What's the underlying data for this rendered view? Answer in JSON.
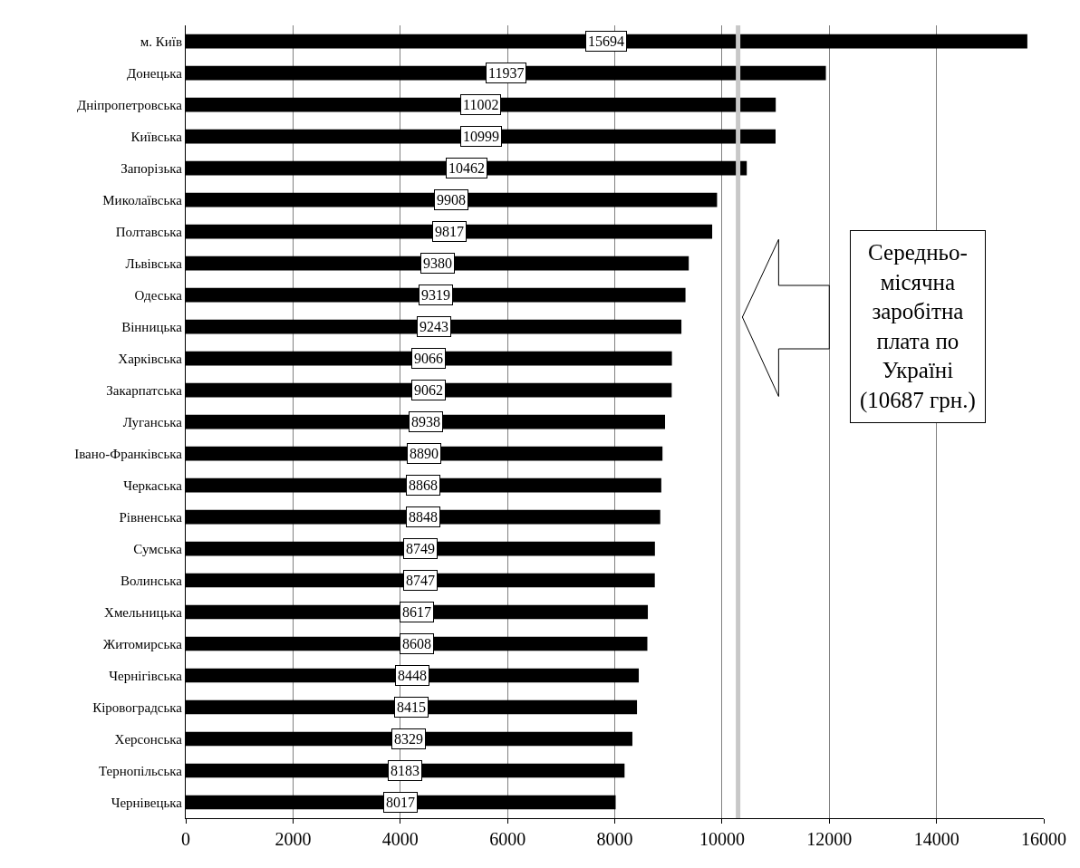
{
  "chart_data": {
    "type": "bar",
    "orientation": "horizontal",
    "categories": [
      "м. Київ",
      "Донецька",
      "Дніпропетровська",
      "Київська",
      "Запорізька",
      "Миколаївська",
      "Полтавська",
      "Львівська",
      "Одеська",
      "Вінницька",
      "Харківська",
      "Закарпатська",
      "Луганська",
      "Івано-Франківська",
      "Черкаська",
      "Рівненська",
      "Сумська",
      "Волинська",
      "Хмельницька",
      "Житомирська",
      "Чернігівська",
      "Кіровоградська",
      "Херсонська",
      "Тернопільська",
      "Чернівецька"
    ],
    "values": [
      15694,
      11937,
      11002,
      10999,
      10462,
      9908,
      9817,
      9380,
      9319,
      9243,
      9066,
      9062,
      8938,
      8890,
      8868,
      8848,
      8749,
      8747,
      8617,
      8608,
      8448,
      8415,
      8329,
      8183,
      8017
    ],
    "color": "#000000",
    "data_labels": true,
    "xlim": [
      0,
      16000
    ],
    "xticks": [
      0,
      2000,
      4000,
      6000,
      8000,
      10000,
      12000,
      14000,
      16000
    ],
    "grid": "x",
    "ref_lines": [
      {
        "axis": "x",
        "value": 10300,
        "color": "#c8c8c8"
      }
    ],
    "annotations": [
      "Середньо-\nмісячна\nзаробітна\nплата по\nУкраїні\n(10687 грн.)"
    ]
  }
}
